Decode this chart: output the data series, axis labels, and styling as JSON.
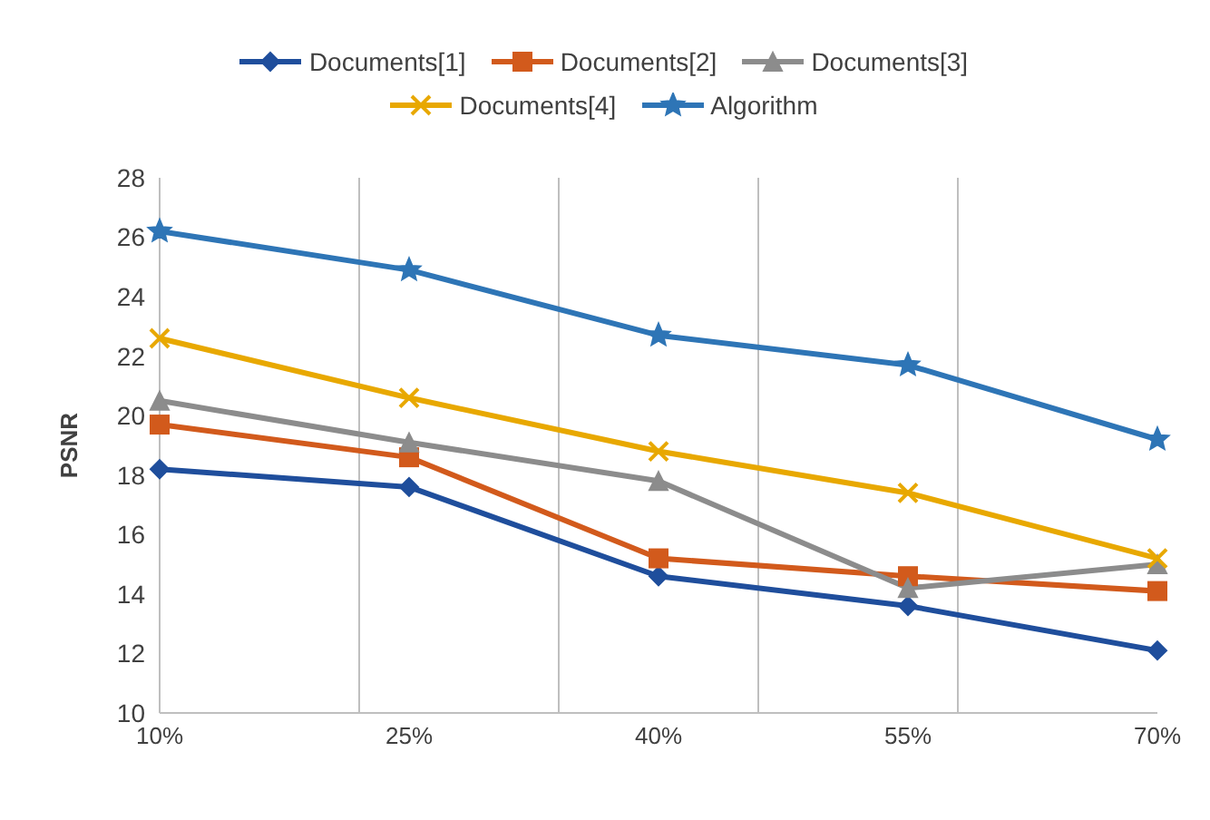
{
  "chart_data": {
    "type": "line",
    "ylabel": "PSNR",
    "categories": [
      "10%",
      "25%",
      "40%",
      "55%",
      "70%"
    ],
    "series": [
      {
        "name": "Documents[1]",
        "color": "#1f4e9c",
        "marker": "diamond",
        "values": [
          18.2,
          17.6,
          14.6,
          13.6,
          12.1
        ]
      },
      {
        "name": "Documents[2]",
        "color": "#d25a1c",
        "marker": "square",
        "values": [
          19.7,
          18.6,
          15.2,
          14.6,
          14.1
        ]
      },
      {
        "name": "Documents[3]",
        "color": "#8c8c8c",
        "marker": "triangle",
        "values": [
          20.5,
          19.1,
          17.8,
          14.2,
          15.0
        ]
      },
      {
        "name": "Documents[4]",
        "color": "#e8a800",
        "marker": "cross",
        "values": [
          22.6,
          20.6,
          18.8,
          17.4,
          15.2
        ]
      },
      {
        "name": "Algorithm",
        "color": "#2e75b6",
        "marker": "star",
        "values": [
          26.2,
          24.9,
          22.7,
          21.7,
          19.2
        ]
      }
    ],
    "ylim": [
      10,
      28
    ],
    "yticks": [
      10,
      12,
      14,
      16,
      18,
      20,
      22,
      24,
      26,
      28
    ],
    "grid": "x",
    "legend": "top",
    "line_style": "solid"
  }
}
